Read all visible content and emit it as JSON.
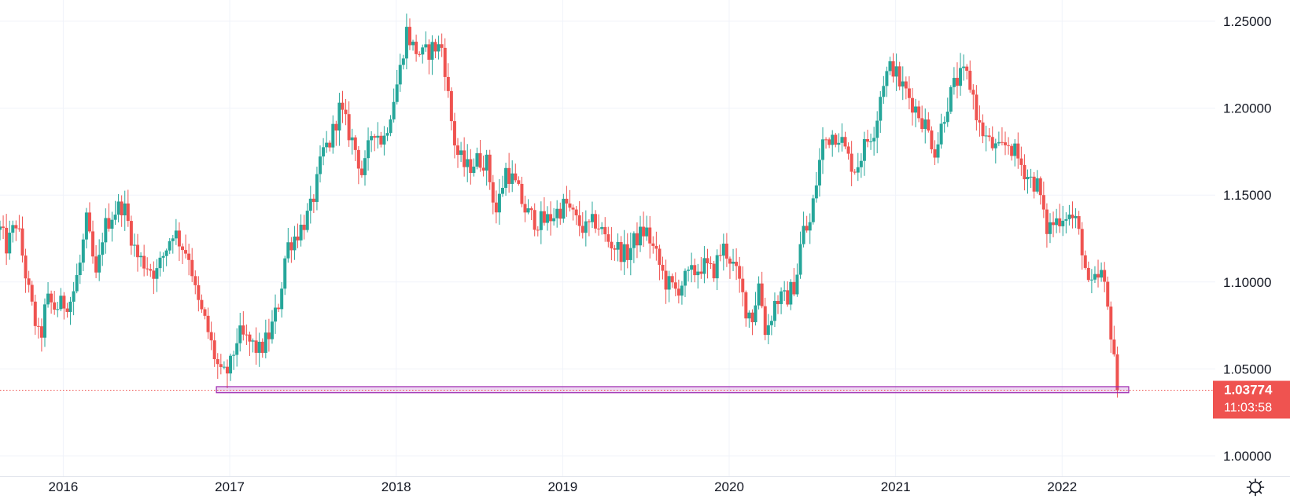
{
  "chart_data": {
    "type": "candlestick",
    "title": "",
    "xlabel": "",
    "ylabel": "",
    "ylim": [
      0.98,
      1.26
    ],
    "y_ticks": [
      "1.25000",
      "1.20000",
      "1.15000",
      "1.10000",
      "1.05000",
      "1.00000"
    ],
    "y_tick_values": [
      1.25,
      1.2,
      1.15,
      1.1,
      1.05,
      1.0
    ],
    "x_ticks": [
      "2016",
      "2017",
      "2018",
      "2019",
      "2020",
      "2021",
      "2022"
    ],
    "x_tick_values": [
      2016.0,
      2017.0,
      2018.0,
      2019.0,
      2020.0,
      2021.0,
      2022.0
    ],
    "xlim": [
      2015.62,
      2022.92
    ],
    "grid": true,
    "colors": {
      "up": "#26a69a",
      "down": "#ef5350",
      "zone": "#9c27b0",
      "last_line": "#ef5350",
      "grid": "#f0f3fa",
      "axis_text": "#131722"
    },
    "last_price": {
      "value": 1.03774,
      "label": "1.03774",
      "countdown": "11:03:58"
    },
    "support_zone": {
      "x_start": 2016.92,
      "x_end": 2022.4,
      "y_low": 1.0363,
      "y_high": 1.0398
    },
    "close_path": [
      [
        2015.62,
        1.13
      ],
      [
        2015.66,
        1.12
      ],
      [
        2015.72,
        1.135
      ],
      [
        2015.8,
        1.09
      ],
      [
        2015.86,
        1.065
      ],
      [
        2015.9,
        1.09
      ],
      [
        2015.95,
        1.085
      ],
      [
        2016.05,
        1.09
      ],
      [
        2016.1,
        1.11
      ],
      [
        2016.14,
        1.135
      ],
      [
        2016.2,
        1.1
      ],
      [
        2016.24,
        1.13
      ],
      [
        2016.3,
        1.14
      ],
      [
        2016.36,
        1.145
      ],
      [
        2016.4,
        1.13
      ],
      [
        2016.44,
        1.115
      ],
      [
        2016.5,
        1.11
      ],
      [
        2016.56,
        1.105
      ],
      [
        2016.6,
        1.115
      ],
      [
        2016.66,
        1.13
      ],
      [
        2016.72,
        1.12
      ],
      [
        2016.76,
        1.115
      ],
      [
        2016.8,
        1.09
      ],
      [
        2016.86,
        1.075
      ],
      [
        2016.9,
        1.06
      ],
      [
        2016.95,
        1.045
      ],
      [
        2017.0,
        1.05
      ],
      [
        2017.05,
        1.07
      ],
      [
        2017.12,
        1.065
      ],
      [
        2017.18,
        1.06
      ],
      [
        2017.24,
        1.07
      ],
      [
        2017.3,
        1.09
      ],
      [
        2017.34,
        1.12
      ],
      [
        2017.42,
        1.13
      ],
      [
        2017.48,
        1.14
      ],
      [
        2017.52,
        1.155
      ],
      [
        2017.56,
        1.175
      ],
      [
        2017.6,
        1.18
      ],
      [
        2017.66,
        1.2
      ],
      [
        2017.7,
        1.19
      ],
      [
        2017.76,
        1.175
      ],
      [
        2017.8,
        1.16
      ],
      [
        2017.86,
        1.19
      ],
      [
        2017.92,
        1.18
      ],
      [
        2017.97,
        1.2
      ],
      [
        2018.02,
        1.22
      ],
      [
        2018.06,
        1.245
      ],
      [
        2018.1,
        1.235
      ],
      [
        2018.16,
        1.23
      ],
      [
        2018.22,
        1.235
      ],
      [
        2018.28,
        1.235
      ],
      [
        2018.32,
        1.2
      ],
      [
        2018.36,
        1.175
      ],
      [
        2018.42,
        1.165
      ],
      [
        2018.48,
        1.17
      ],
      [
        2018.54,
        1.17
      ],
      [
        2018.6,
        1.14
      ],
      [
        2018.66,
        1.165
      ],
      [
        2018.72,
        1.155
      ],
      [
        2018.78,
        1.14
      ],
      [
        2018.84,
        1.135
      ],
      [
        2018.9,
        1.135
      ],
      [
        2018.96,
        1.14
      ],
      [
        2019.02,
        1.145
      ],
      [
        2019.08,
        1.135
      ],
      [
        2019.14,
        1.13
      ],
      [
        2019.2,
        1.135
      ],
      [
        2019.26,
        1.125
      ],
      [
        2019.32,
        1.12
      ],
      [
        2019.38,
        1.115
      ],
      [
        2019.44,
        1.125
      ],
      [
        2019.5,
        1.13
      ],
      [
        2019.56,
        1.115
      ],
      [
        2019.62,
        1.1
      ],
      [
        2019.68,
        1.095
      ],
      [
        2019.72,
        1.1
      ],
      [
        2019.78,
        1.105
      ],
      [
        2019.84,
        1.11
      ],
      [
        2019.9,
        1.105
      ],
      [
        2019.96,
        1.12
      ],
      [
        2020.0,
        1.115
      ],
      [
        2020.06,
        1.1
      ],
      [
        2020.1,
        1.085
      ],
      [
        2020.14,
        1.08
      ],
      [
        2020.18,
        1.1
      ],
      [
        2020.22,
        1.07
      ],
      [
        2020.28,
        1.09
      ],
      [
        2020.34,
        1.09
      ],
      [
        2020.4,
        1.1
      ],
      [
        2020.44,
        1.13
      ],
      [
        2020.48,
        1.13
      ],
      [
        2020.52,
        1.155
      ],
      [
        2020.56,
        1.18
      ],
      [
        2020.62,
        1.185
      ],
      [
        2020.66,
        1.185
      ],
      [
        2020.72,
        1.17
      ],
      [
        2020.76,
        1.165
      ],
      [
        2020.82,
        1.18
      ],
      [
        2020.88,
        1.19
      ],
      [
        2020.92,
        1.215
      ],
      [
        2020.98,
        1.225
      ],
      [
        2021.02,
        1.215
      ],
      [
        2021.06,
        1.21
      ],
      [
        2021.12,
        1.2
      ],
      [
        2021.18,
        1.19
      ],
      [
        2021.24,
        1.175
      ],
      [
        2021.3,
        1.2
      ],
      [
        2021.36,
        1.215
      ],
      [
        2021.42,
        1.22
      ],
      [
        2021.46,
        1.21
      ],
      [
        2021.5,
        1.19
      ],
      [
        2021.56,
        1.18
      ],
      [
        2021.62,
        1.175
      ],
      [
        2021.68,
        1.18
      ],
      [
        2021.74,
        1.17
      ],
      [
        2021.8,
        1.16
      ],
      [
        2021.86,
        1.155
      ],
      [
        2021.9,
        1.13
      ],
      [
        2021.96,
        1.135
      ],
      [
        2022.02,
        1.14
      ],
      [
        2022.08,
        1.135
      ],
      [
        2022.12,
        1.12
      ],
      [
        2022.16,
        1.095
      ],
      [
        2022.2,
        1.1
      ],
      [
        2022.24,
        1.105
      ],
      [
        2022.28,
        1.08
      ],
      [
        2022.32,
        1.055
      ],
      [
        2022.34,
        1.0377
      ]
    ]
  },
  "ui": {
    "settings_icon": "gear-icon"
  }
}
